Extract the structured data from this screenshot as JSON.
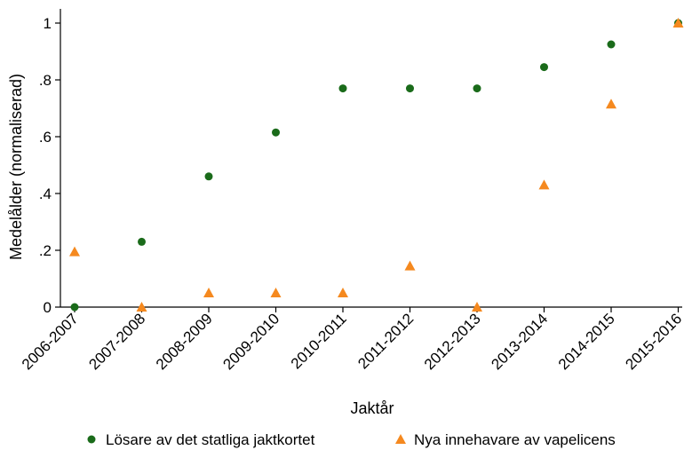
{
  "chart_data": {
    "type": "scatter",
    "xlabel": "Jaktår",
    "ylabel": "Medelålder (normaliserad)",
    "categories": [
      "2006-2007",
      "2007-2008",
      "2008-2009",
      "2009-2010",
      "2010-2011",
      "2011-2012",
      "2012-2013",
      "2013-2014",
      "2014-2015",
      "2015-2016"
    ],
    "ylim": [
      0,
      1
    ],
    "yticks": [
      0,
      0.2,
      0.4,
      0.6,
      0.8,
      1
    ],
    "ytick_labels": [
      "0",
      ".2",
      ".4",
      ".6",
      ".8",
      "1"
    ],
    "grid": false,
    "legend_position": "bottom",
    "series": [
      {
        "name": "Lösare av det statliga jaktkortet",
        "marker": "circle",
        "color": "#1a6b1a",
        "values": [
          0,
          0.23,
          0.46,
          0.615,
          0.77,
          0.77,
          0.77,
          0.845,
          0.925,
          1.0
        ]
      },
      {
        "name": "Nya innehavare av vapelicens",
        "marker": "triangle",
        "color": "#f5891f",
        "values": [
          0.195,
          0,
          0.05,
          0.05,
          0.05,
          0.145,
          0,
          0.43,
          0.715,
          1.0
        ]
      }
    ]
  }
}
